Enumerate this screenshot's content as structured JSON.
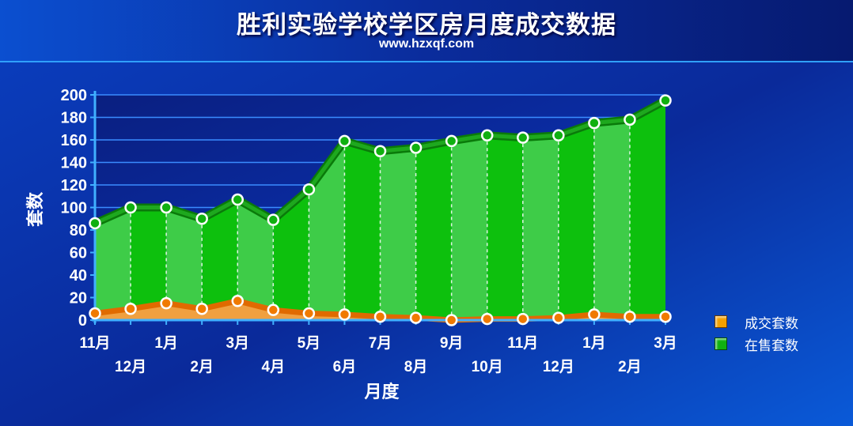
{
  "chart_data": {
    "type": "area",
    "title": "胜利实验学校学区房月度成交数据",
    "subtitle": "www.hzxqf.com",
    "xlabel": "月度",
    "ylabel": "套数",
    "ylim": [
      0,
      200
    ],
    "yticks": [
      0,
      20,
      40,
      60,
      80,
      100,
      120,
      140,
      160,
      180,
      200
    ],
    "categories": [
      "11月",
      "12月",
      "1月",
      "2月",
      "3月",
      "4月",
      "5月",
      "6月",
      "7月",
      "8月",
      "9月",
      "10月",
      "11月",
      "12月",
      "1月",
      "2月",
      "3月"
    ],
    "series": [
      {
        "name": "在售套数",
        "color": "#10c010",
        "values": [
          86,
          100,
          100,
          90,
          107,
          89,
          116,
          159,
          150,
          153,
          159,
          164,
          162,
          164,
          175,
          178,
          195
        ]
      },
      {
        "name": "成交套数",
        "color": "#f08a10",
        "values": [
          6,
          10,
          15,
          10,
          17,
          9,
          6,
          5,
          3,
          2,
          0,
          1,
          1,
          2,
          5,
          3,
          3
        ]
      }
    ],
    "grid": true,
    "legend_position": "bottom-right"
  },
  "legend": [
    {
      "label": "成交套数",
      "color": "#f5a000"
    },
    {
      "label": "在售套数",
      "color": "#10b010"
    }
  ]
}
